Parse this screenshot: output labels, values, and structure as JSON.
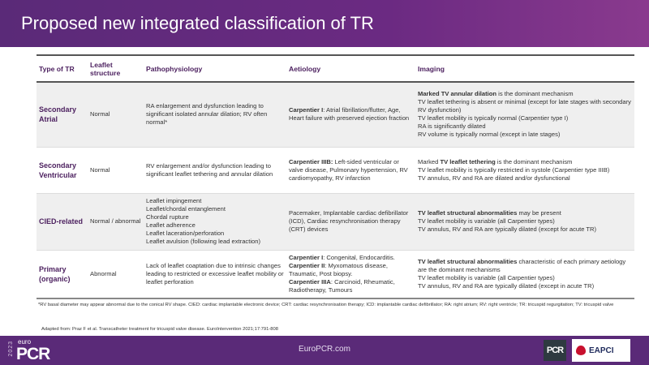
{
  "title": "Proposed new integrated classification of TR",
  "table": {
    "headers": [
      "Type of TR",
      "Leaflet structure",
      "Pathophysiology",
      "Aetiology",
      "Imaging"
    ],
    "rows": [
      {
        "type": "Secondary Atrial",
        "leaflet": "Normal",
        "patho": [
          [
            {
              "t": "RA enlargement and dysfunction leading to significant isolated annular dilation; RV often normal*"
            }
          ]
        ],
        "aetiology": [
          [
            {
              "b": "Carpentier I"
            },
            {
              "t": ": Atrial fibrillation/flutter, Age, Heart failure with preserved ejection fraction"
            }
          ]
        ],
        "imaging": [
          [
            {
              "b": "Marked TV annular dilation"
            },
            {
              "t": " is the dominant mechanism"
            }
          ],
          [
            {
              "t": "TV leaflet tethering is absent or minimal (except for late stages with secondary RV dysfunction)"
            }
          ],
          [
            {
              "t": "TV leaflet mobility is typically normal (Carpentier type I)"
            }
          ],
          [
            {
              "t": "RA is significantly dilated"
            }
          ],
          [
            {
              "t": "RV volume is typically normal (except in late stages)"
            }
          ]
        ]
      },
      {
        "type": "Secondary Ventricular",
        "leaflet": "Normal",
        "patho": [
          [
            {
              "t": "RV enlargement and/or dysfunction leading to significant leaflet tethering and annular dilation"
            }
          ]
        ],
        "aetiology": [
          [
            {
              "b": "Carpentier IIIB:"
            },
            {
              "t": " Left-sided ventricular or valve disease, Pulmonary hypertension, RV cardiomyopathy, RV infarction"
            }
          ]
        ],
        "imaging": [
          [
            {
              "t": "Marked "
            },
            {
              "b": "TV leaflet tethering"
            },
            {
              "t": " is the dominant mechanism"
            }
          ],
          [
            {
              "t": "TV leaflet mobility is typically restricted in systole (Carpentier type IIIB)"
            }
          ],
          [
            {
              "t": "TV annulus, RV and RA are dilated and/or dysfunctional"
            }
          ]
        ]
      },
      {
        "type": "CIED-related",
        "leaflet": "Normal / abnormal",
        "patho": [
          [
            {
              "t": "Leaflet impingement"
            }
          ],
          [
            {
              "t": "Leaflet/chordal entanglement"
            }
          ],
          [
            {
              "t": "Chordal rupture"
            }
          ],
          [
            {
              "t": "Leaflet adherence"
            }
          ],
          [
            {
              "t": "Leaflet laceration/perforation"
            }
          ],
          [
            {
              "t": "Leaflet avulsion (following lead extraction)"
            }
          ]
        ],
        "aetiology": [
          [
            {
              "t": "Pacemaker, Implantable cardiac defibrillator (ICD), Cardiac resynchronisation therapy (CRT) devices"
            }
          ]
        ],
        "imaging": [
          [
            {
              "b": "TV leaflet structural abnormalities"
            },
            {
              "t": " may be present"
            }
          ],
          [
            {
              "t": "TV leaflet mobility is variable (all Carpentier types)"
            }
          ],
          [
            {
              "t": "TV annulus, RV and RA are typically dilated (except for acute TR)"
            }
          ]
        ]
      },
      {
        "type": "Primary (organic)",
        "leaflet": "Abnormal",
        "patho": [
          [
            {
              "t": "Lack of leaflet coaptation due to intrinsic changes leading to restricted or excessive leaflet mobility or leaflet perforation"
            }
          ]
        ],
        "aetiology": [
          [
            {
              "b": "Carpentier I"
            },
            {
              "t": ": Congenital, Endocarditis."
            }
          ],
          [
            {
              "b": "Carpentier II"
            },
            {
              "t": ": Myxomatous disease, Traumatic, Post biopsy."
            }
          ],
          [
            {
              "b": "Carpentier IIIA"
            },
            {
              "t": ": Carcinoid, Rheumatic, Radiotherapy, Tumours"
            }
          ]
        ],
        "imaging": [
          [
            {
              "b": "TV leaflet structural abnormalities"
            },
            {
              "t": " characteristic of each primary aetiology are the dominant mechanisms"
            }
          ],
          [
            {
              "t": "TV leaflet mobility is variable (all Carpentier types)"
            }
          ],
          [
            {
              "t": "TV annulus, RV and RA are typically dilated (except in acute TR)"
            }
          ]
        ]
      }
    ]
  },
  "footnote": "*RV basal diameter may appear abnormal due to the conical RV shape. CIED: cardiac implantable electronic device; CRT: cardiac resynchronisation therapy; ICD: implantable cardiac defibrillator; RA: right atrium; RV: right ventricle; TR: tricuspid regurgitation; TV: tricuspid valve",
  "adapted": "Adapted from: Praz F et al. Transcatheter treatment for tricuspid valve disease.  EuroIntervention 2021;17:791-808",
  "footer": {
    "logo_year": "2023",
    "logo_euro": "euro",
    "logo_pcr": "PCR",
    "site": "EuroPCR.com",
    "pcr_badge": "PCR",
    "eapci": "EAPCI"
  },
  "colors": {
    "header": "#5a2a78",
    "accent_text": "#4b1f5e",
    "row_shade": "#efefef"
  }
}
